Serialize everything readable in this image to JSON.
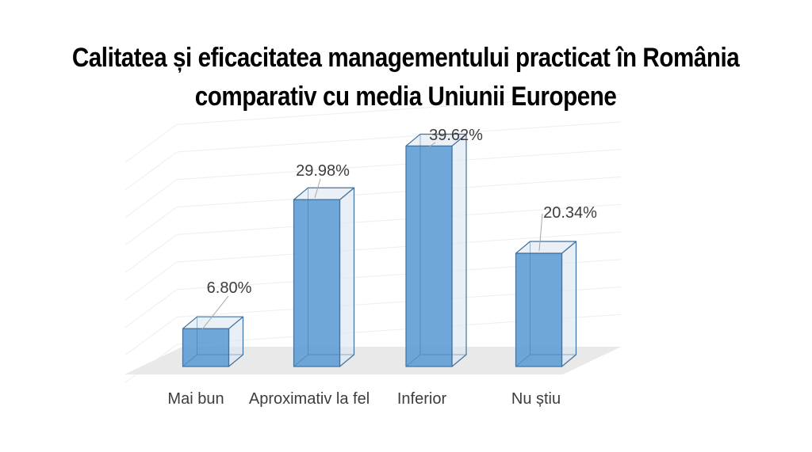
{
  "title": {
    "line1": "Calitatea și eficacitatea managementului practicat în România",
    "line2": "comparativ cu media Uniunii Europene"
  },
  "chart_data": {
    "type": "bar",
    "subtype": "3d-column",
    "title": "Calitatea și eficacitatea managementului practicat în România comparativ cu media Uniunii Europene",
    "categories": [
      "Mai bun",
      "Aproximativ la fel",
      "Inferior",
      "Nu știu"
    ],
    "values": [
      6.8,
      29.98,
      39.62,
      20.34
    ],
    "data_labels": [
      "6.80%",
      "29.98%",
      "39.62%",
      "20.34%"
    ],
    "unit": "%",
    "xlabel": "",
    "ylabel": "",
    "ylim": [
      0,
      45
    ],
    "gridline_interval": 5,
    "grid": true,
    "legend": "none"
  },
  "colors": {
    "background": "#ffffff",
    "title_text": "#000000",
    "bar_front": "#5b9bd5",
    "bar_side": "#dce6f2",
    "bar_top": "#e9eef6",
    "bar_edge": "#41719c",
    "floor": "#e9e9e9",
    "gridline": "#ededed",
    "leader_line": "#a6a6a6",
    "label_text": "#3d3d3d"
  }
}
